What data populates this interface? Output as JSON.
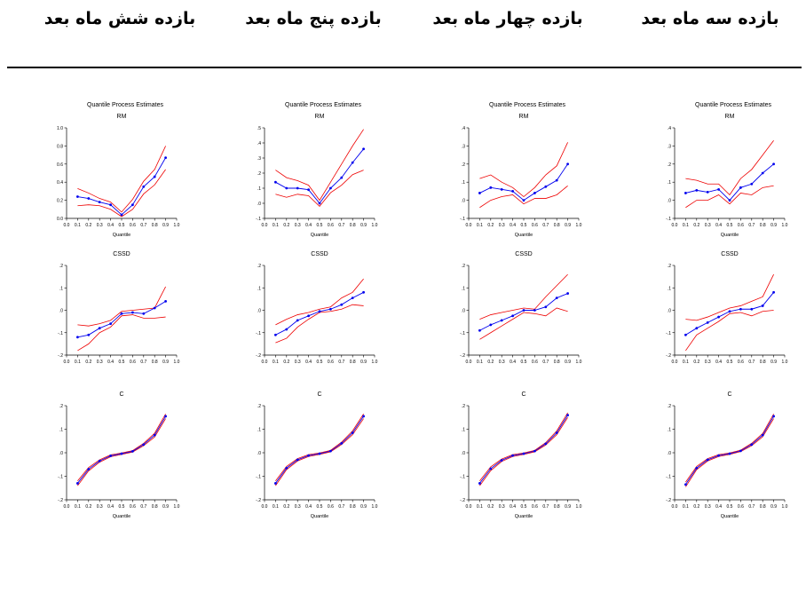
{
  "headers": [
    "بازده سه ماه بعد",
    "بازده چهار ماه بعد",
    "بازده پنج ماه بعد",
    "بازده شش ماه بعد"
  ],
  "colors": {
    "estimate": "#0000ee",
    "bounds": "#ee0000",
    "axis": "#000000"
  },
  "chart_data": [
    {
      "type": "line",
      "title": "Quantile Process Estimates",
      "panels": [
        {
          "subtitle": "RM",
          "xlabel": "Quantile",
          "ylim": [
            -0.1,
            0.4
          ],
          "yticks": [
            -0.1,
            0.0,
            0.1,
            0.2,
            0.3,
            0.4
          ],
          "ytick_labels": [
            "-.1",
            ".0",
            ".1",
            ".2",
            ".3",
            ".4"
          ],
          "x": [
            0.1,
            0.2,
            0.3,
            0.4,
            0.5,
            0.6,
            0.7,
            0.8,
            0.9
          ],
          "series": [
            {
              "role": "estimate",
              "values": [
                0.04,
                0.055,
                0.045,
                0.06,
                0.0,
                0.07,
                0.09,
                0.15,
                0.2
              ]
            },
            {
              "role": "upper",
              "values": [
                0.12,
                0.11,
                0.09,
                0.09,
                0.03,
                0.12,
                0.17,
                0.25,
                0.33
              ]
            },
            {
              "role": "lower",
              "values": [
                -0.04,
                0.0,
                0.0,
                0.03,
                -0.02,
                0.04,
                0.03,
                0.07,
                0.08
              ]
            }
          ]
        },
        {
          "subtitle": "CSSD",
          "xlabel": "",
          "ylim": [
            -0.2,
            0.2
          ],
          "yticks": [
            -0.2,
            -0.1,
            0.0,
            0.1,
            0.2
          ],
          "ytick_labels": [
            "-.2",
            "-.1",
            ".0",
            ".1",
            ".2"
          ],
          "x": [
            0.1,
            0.2,
            0.3,
            0.4,
            0.5,
            0.6,
            0.7,
            0.8,
            0.9
          ],
          "series": [
            {
              "role": "estimate",
              "values": [
                -0.11,
                -0.08,
                -0.055,
                -0.03,
                -0.005,
                0.005,
                0.005,
                0.02,
                0.08
              ]
            },
            {
              "role": "upper",
              "values": [
                -0.04,
                -0.045,
                -0.03,
                -0.01,
                0.01,
                0.02,
                0.04,
                0.06,
                0.16
              ]
            },
            {
              "role": "lower",
              "values": [
                -0.18,
                -0.11,
                -0.08,
                -0.05,
                -0.015,
                -0.01,
                -0.025,
                -0.005,
                0.0
              ]
            }
          ]
        },
        {
          "subtitle": "C",
          "xlabel": "Quantile",
          "ylim": [
            -0.2,
            0.2
          ],
          "yticks": [
            -0.2,
            -0.1,
            0.0,
            0.1,
            0.2
          ],
          "ytick_labels": [
            "-.2",
            "-.1",
            ".0",
            ".1",
            ".2"
          ],
          "x": [
            0.1,
            0.2,
            0.3,
            0.4,
            0.5,
            0.6,
            0.7,
            0.8,
            0.9
          ],
          "series": [
            {
              "role": "estimate",
              "values": [
                -0.135,
                -0.065,
                -0.03,
                -0.012,
                -0.004,
                0.008,
                0.035,
                0.075,
                0.155
              ]
            },
            {
              "role": "upper",
              "values": [
                -0.125,
                -0.058,
                -0.025,
                -0.008,
                -0.001,
                0.011,
                0.04,
                0.082,
                0.165
              ]
            },
            {
              "role": "lower",
              "values": [
                -0.145,
                -0.072,
                -0.035,
                -0.016,
                -0.007,
                0.005,
                0.03,
                0.068,
                0.145
              ]
            }
          ]
        }
      ]
    },
    {
      "type": "line",
      "title": "Quantile Process Estimates",
      "panels": [
        {
          "subtitle": "RM",
          "xlabel": "Quantile",
          "ylim": [
            -0.1,
            0.4
          ],
          "yticks": [
            -0.1,
            0.0,
            0.1,
            0.2,
            0.3,
            0.4
          ],
          "ytick_labels": [
            "-.1",
            ".0",
            ".1",
            ".2",
            ".3",
            ".4"
          ],
          "x": [
            0.1,
            0.2,
            0.3,
            0.4,
            0.5,
            0.6,
            0.7,
            0.8,
            0.9
          ],
          "series": [
            {
              "role": "estimate",
              "values": [
                0.04,
                0.07,
                0.06,
                0.05,
                0.0,
                0.04,
                0.075,
                0.11,
                0.2
              ]
            },
            {
              "role": "upper",
              "values": [
                0.12,
                0.14,
                0.1,
                0.07,
                0.02,
                0.07,
                0.14,
                0.19,
                0.32
              ]
            },
            {
              "role": "lower",
              "values": [
                -0.04,
                0.0,
                0.02,
                0.03,
                -0.02,
                0.01,
                0.01,
                0.03,
                0.08
              ]
            }
          ]
        },
        {
          "subtitle": "CSSD",
          "xlabel": "",
          "ylim": [
            -0.2,
            0.2
          ],
          "yticks": [
            -0.2,
            -0.1,
            0.0,
            0.1,
            0.2
          ],
          "ytick_labels": [
            "-.2",
            "-.1",
            ".0",
            ".1",
            ".2"
          ],
          "x": [
            0.1,
            0.2,
            0.3,
            0.4,
            0.5,
            0.6,
            0.7,
            0.8,
            0.9
          ],
          "series": [
            {
              "role": "estimate",
              "values": [
                -0.09,
                -0.065,
                -0.045,
                -0.025,
                0.0,
                0.0,
                0.015,
                0.055,
                0.075
              ]
            },
            {
              "role": "upper",
              "values": [
                -0.04,
                -0.02,
                -0.01,
                0.0,
                0.01,
                0.005,
                0.06,
                0.11,
                0.16
              ]
            },
            {
              "role": "lower",
              "values": [
                -0.13,
                -0.1,
                -0.07,
                -0.04,
                -0.01,
                -0.015,
                -0.025,
                0.01,
                -0.005
              ]
            }
          ]
        },
        {
          "subtitle": "C",
          "xlabel": "Quantile",
          "ylim": [
            -0.2,
            0.2
          ],
          "yticks": [
            -0.2,
            -0.1,
            0.0,
            0.1,
            0.2
          ],
          "ytick_labels": [
            "-.2",
            "-.1",
            ".0",
            ".1",
            ".2"
          ],
          "x": [
            0.1,
            0.2,
            0.3,
            0.4,
            0.5,
            0.6,
            0.7,
            0.8,
            0.9
          ],
          "series": [
            {
              "role": "estimate",
              "values": [
                -0.13,
                -0.068,
                -0.032,
                -0.012,
                -0.004,
                0.007,
                0.038,
                0.085,
                0.16
              ]
            },
            {
              "role": "upper",
              "values": [
                -0.12,
                -0.06,
                -0.027,
                -0.008,
                -0.001,
                0.01,
                0.043,
                0.093,
                0.17
              ]
            },
            {
              "role": "lower",
              "values": [
                -0.14,
                -0.076,
                -0.037,
                -0.016,
                -0.007,
                0.004,
                0.033,
                0.077,
                0.15
              ]
            }
          ]
        }
      ]
    },
    {
      "type": "line",
      "title": "Quantile Process Estimates",
      "panels": [
        {
          "subtitle": "RM",
          "xlabel": "Quantile",
          "ylim": [
            -0.1,
            0.5
          ],
          "yticks": [
            -0.1,
            0.0,
            0.1,
            0.2,
            0.3,
            0.4,
            0.5
          ],
          "ytick_labels": [
            "-.1",
            ".0",
            ".1",
            ".2",
            ".3",
            ".4",
            ".5"
          ],
          "x": [
            0.1,
            0.2,
            0.3,
            0.4,
            0.5,
            0.6,
            0.7,
            0.8,
            0.9
          ],
          "series": [
            {
              "role": "estimate",
              "values": [
                0.14,
                0.1,
                0.1,
                0.09,
                0.0,
                0.1,
                0.17,
                0.27,
                0.36
              ]
            },
            {
              "role": "upper",
              "values": [
                0.22,
                0.17,
                0.15,
                0.12,
                0.02,
                0.14,
                0.26,
                0.38,
                0.49
              ]
            },
            {
              "role": "lower",
              "values": [
                0.06,
                0.04,
                0.06,
                0.05,
                -0.02,
                0.07,
                0.12,
                0.19,
                0.22
              ]
            }
          ]
        },
        {
          "subtitle": "CSSD",
          "xlabel": "",
          "ylim": [
            -0.2,
            0.2
          ],
          "yticks": [
            -0.2,
            -0.1,
            0.0,
            0.1,
            0.2
          ],
          "ytick_labels": [
            "-.2",
            "-.1",
            ".0",
            ".1",
            ".2"
          ],
          "x": [
            0.1,
            0.2,
            0.3,
            0.4,
            0.5,
            0.6,
            0.7,
            0.8,
            0.9
          ],
          "series": [
            {
              "role": "estimate",
              "values": [
                -0.11,
                -0.085,
                -0.045,
                -0.025,
                -0.005,
                0.005,
                0.025,
                0.055,
                0.08
              ]
            },
            {
              "role": "upper",
              "values": [
                -0.065,
                -0.04,
                -0.02,
                -0.01,
                0.005,
                0.015,
                0.055,
                0.08,
                0.14
              ]
            },
            {
              "role": "lower",
              "values": [
                -0.145,
                -0.125,
                -0.075,
                -0.04,
                -0.01,
                -0.005,
                0.005,
                0.025,
                0.02
              ]
            }
          ]
        },
        {
          "subtitle": "C",
          "xlabel": "Quantile",
          "ylim": [
            -0.2,
            0.2
          ],
          "yticks": [
            -0.2,
            -0.1,
            0.0,
            0.1,
            0.2
          ],
          "ytick_labels": [
            "-.2",
            "-.1",
            ".0",
            ".1",
            ".2"
          ],
          "x": [
            0.1,
            0.2,
            0.3,
            0.4,
            0.5,
            0.6,
            0.7,
            0.8,
            0.9
          ],
          "series": [
            {
              "role": "estimate",
              "values": [
                -0.13,
                -0.065,
                -0.03,
                -0.012,
                -0.004,
                0.007,
                0.04,
                0.085,
                0.155
              ]
            },
            {
              "role": "upper",
              "values": [
                -0.12,
                -0.058,
                -0.025,
                -0.008,
                -0.001,
                0.01,
                0.045,
                0.093,
                0.165
              ]
            },
            {
              "role": "lower",
              "values": [
                -0.14,
                -0.072,
                -0.035,
                -0.016,
                -0.007,
                0.004,
                0.035,
                0.077,
                0.145
              ]
            }
          ]
        }
      ]
    },
    {
      "type": "line",
      "title": "Quantile Process Estimates",
      "panels": [
        {
          "subtitle": "RM",
          "xlabel": "Quantile",
          "ylim": [
            0.0,
            1.0
          ],
          "yticks": [
            0.0,
            0.2,
            0.4,
            0.6,
            0.8,
            1.0
          ],
          "ytick_labels": [
            "0.0",
            "0.2",
            "0.4",
            "0.6",
            "0.8",
            "1.0"
          ],
          "x": [
            0.1,
            0.2,
            0.3,
            0.4,
            0.5,
            0.6,
            0.7,
            0.8,
            0.9
          ],
          "series": [
            {
              "role": "estimate",
              "values": [
                0.24,
                0.22,
                0.18,
                0.15,
                0.04,
                0.15,
                0.35,
                0.46,
                0.67
              ]
            },
            {
              "role": "upper",
              "values": [
                0.33,
                0.28,
                0.22,
                0.18,
                0.07,
                0.21,
                0.41,
                0.54,
                0.8
              ]
            },
            {
              "role": "lower",
              "values": [
                0.14,
                0.15,
                0.14,
                0.1,
                0.02,
                0.1,
                0.27,
                0.37,
                0.54
              ]
            }
          ]
        },
        {
          "subtitle": "CSSD",
          "xlabel": "",
          "ylim": [
            -0.2,
            0.2
          ],
          "yticks": [
            -0.2,
            -0.1,
            0.0,
            0.1,
            0.2
          ],
          "ytick_labels": [
            "-.2",
            "-.1",
            ".0",
            ".1",
            ".2"
          ],
          "x": [
            0.1,
            0.2,
            0.3,
            0.4,
            0.5,
            0.6,
            0.7,
            0.8,
            0.9
          ],
          "series": [
            {
              "role": "estimate",
              "values": [
                -0.12,
                -0.11,
                -0.08,
                -0.06,
                -0.015,
                -0.01,
                -0.015,
                0.01,
                0.04
              ]
            },
            {
              "role": "upper",
              "values": [
                -0.065,
                -0.07,
                -0.06,
                -0.045,
                -0.005,
                0.0,
                0.005,
                0.01,
                0.105
              ]
            },
            {
              "role": "lower",
              "values": [
                -0.18,
                -0.15,
                -0.1,
                -0.075,
                -0.025,
                -0.02,
                -0.035,
                -0.035,
                -0.03
              ]
            }
          ]
        },
        {
          "subtitle": "C",
          "xlabel": "Quantile",
          "ylim": [
            -0.2,
            0.2
          ],
          "yticks": [
            -0.2,
            -0.1,
            0.0,
            0.1,
            0.2
          ],
          "ytick_labels": [
            "-.2",
            "-.1",
            ".0",
            ".1",
            ".2"
          ],
          "x": [
            0.1,
            0.2,
            0.3,
            0.4,
            0.5,
            0.6,
            0.7,
            0.8,
            0.9
          ],
          "series": [
            {
              "role": "estimate",
              "values": [
                -0.13,
                -0.07,
                -0.035,
                -0.013,
                -0.004,
                0.006,
                0.035,
                0.075,
                0.155
              ]
            },
            {
              "role": "upper",
              "values": [
                -0.12,
                -0.063,
                -0.03,
                -0.009,
                -0.001,
                0.009,
                0.04,
                0.083,
                0.165
              ]
            },
            {
              "role": "lower",
              "values": [
                -0.14,
                -0.077,
                -0.04,
                -0.017,
                -0.007,
                0.003,
                0.03,
                0.067,
                0.145
              ]
            }
          ]
        }
      ]
    }
  ],
  "xaxis": {
    "ticks": [
      0.0,
      0.1,
      0.2,
      0.3,
      0.4,
      0.5,
      0.6,
      0.7,
      0.8,
      0.9,
      1.0
    ],
    "tick_labels": [
      "0.0",
      "0.1",
      "0.2",
      "0.3",
      "0.4",
      "0.5",
      "0.6",
      "0.7",
      "0.8",
      "0.9",
      "1.0"
    ],
    "xlim": [
      0.0,
      1.0
    ]
  }
}
